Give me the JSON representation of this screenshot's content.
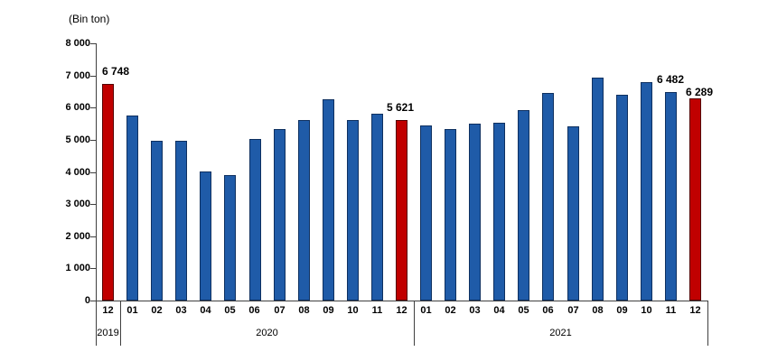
{
  "chart_data": {
    "type": "bar",
    "title": "(Bin ton)",
    "ylabel": "(Bin ton)",
    "xlabel": "",
    "ylim": [
      0,
      8000
    ],
    "y_tick_step": 1000,
    "grid": false,
    "legend": false,
    "note": "Bars without printed data labels are values estimated from bar heights; red bars mark December of each year",
    "y_ticks": [
      {
        "value": 0,
        "label": "0"
      },
      {
        "value": 1000,
        "label": "1 000"
      },
      {
        "value": 2000,
        "label": "2 000"
      },
      {
        "value": 3000,
        "label": "3 000"
      },
      {
        "value": 4000,
        "label": "4 000"
      },
      {
        "value": 5000,
        "label": "5 000"
      },
      {
        "value": 6000,
        "label": "6 000"
      },
      {
        "value": 7000,
        "label": "7 000"
      },
      {
        "value": 8000,
        "label": "8 000"
      }
    ],
    "bars": [
      {
        "month": "12",
        "year": "2019",
        "value": 6748,
        "color": "red",
        "data_label": "6 748",
        "label_dx": 8,
        "label_dy": 0
      },
      {
        "month": "01",
        "year": "2020",
        "value": 5760,
        "color": "blue"
      },
      {
        "month": "02",
        "year": "2020",
        "value": 4970,
        "color": "blue"
      },
      {
        "month": "03",
        "year": "2020",
        "value": 4970,
        "color": "blue"
      },
      {
        "month": "04",
        "year": "2020",
        "value": 4010,
        "color": "blue"
      },
      {
        "month": "05",
        "year": "2020",
        "value": 3890,
        "color": "blue"
      },
      {
        "month": "06",
        "year": "2020",
        "value": 5020,
        "color": "blue"
      },
      {
        "month": "07",
        "year": "2020",
        "value": 5330,
        "color": "blue"
      },
      {
        "month": "08",
        "year": "2020",
        "value": 5600,
        "color": "blue"
      },
      {
        "month": "09",
        "year": "2020",
        "value": 6250,
        "color": "blue"
      },
      {
        "month": "10",
        "year": "2020",
        "value": 5600,
        "color": "blue"
      },
      {
        "month": "11",
        "year": "2020",
        "value": 5810,
        "color": "blue"
      },
      {
        "month": "12",
        "year": "2020",
        "value": 5621,
        "color": "red",
        "data_label": "5 621",
        "label_dx": -2,
        "label_dy": 0
      },
      {
        "month": "01",
        "year": "2021",
        "value": 5450,
        "color": "blue"
      },
      {
        "month": "02",
        "year": "2021",
        "value": 5320,
        "color": "blue"
      },
      {
        "month": "03",
        "year": "2021",
        "value": 5490,
        "color": "blue"
      },
      {
        "month": "04",
        "year": "2021",
        "value": 5530,
        "color": "blue"
      },
      {
        "month": "05",
        "year": "2021",
        "value": 5910,
        "color": "blue"
      },
      {
        "month": "06",
        "year": "2021",
        "value": 6460,
        "color": "blue"
      },
      {
        "month": "07",
        "year": "2021",
        "value": 5430,
        "color": "blue"
      },
      {
        "month": "08",
        "year": "2021",
        "value": 6920,
        "color": "blue"
      },
      {
        "month": "09",
        "year": "2021",
        "value": 6400,
        "color": "blue"
      },
      {
        "month": "10",
        "year": "2021",
        "value": 6780,
        "color": "blue"
      },
      {
        "month": "11",
        "year": "2021",
        "value": 6482,
        "color": "blue",
        "data_label": "6 482",
        "label_dx": 0,
        "label_dy": 0
      },
      {
        "month": "12",
        "year": "2021",
        "value": 6289,
        "color": "red",
        "data_label": "6 289",
        "label_dx": 5,
        "label_dy": 7
      }
    ],
    "year_groups": [
      {
        "label": "2019",
        "from": 0,
        "to": 1
      },
      {
        "label": "2020",
        "from": 1,
        "to": 13
      },
      {
        "label": "2021",
        "from": 13,
        "to": 25
      }
    ]
  },
  "colors": {
    "bar_blue": "#1F5BA8",
    "bar_blue_border": "#0E3060",
    "bar_red": "#C00000",
    "bar_red_border": "#550000",
    "axis_line": "#3F3F3F",
    "text": "#000000",
    "background": "#FFFFFF"
  }
}
